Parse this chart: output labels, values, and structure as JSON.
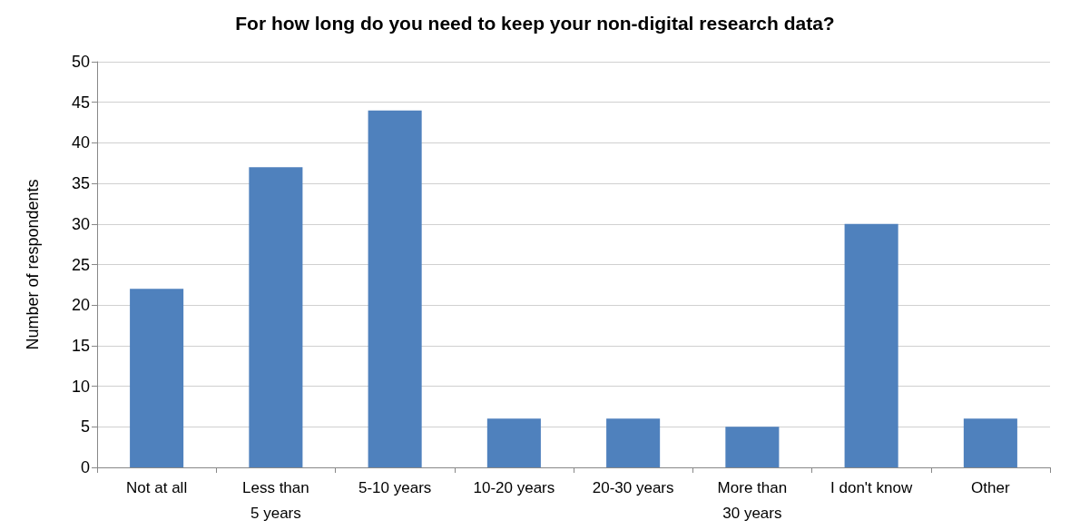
{
  "chart_data": {
    "type": "bar",
    "title": "For how long do you need to keep your non-digital research data?",
    "ylabel": "Number of respondents",
    "categories": [
      "Not at all",
      "Less than\n5 years",
      "5-10 years",
      "10-20 years",
      "20-30 years",
      "More than\n30 years",
      "I don't know",
      "Other"
    ],
    "values": [
      22,
      37,
      44,
      6,
      6,
      5,
      30,
      6
    ],
    "color": "#4f81bd",
    "ylim": [
      0,
      50
    ],
    "yticks": [
      0,
      5,
      10,
      15,
      20,
      25,
      30,
      35,
      40,
      45,
      50
    ],
    "grid": "y"
  }
}
